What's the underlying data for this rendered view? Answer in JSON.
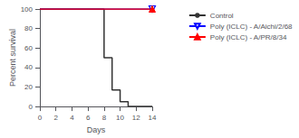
{
  "chart_data": {
    "type": "line",
    "xlabel": "Days",
    "ylabel": "Percent survival",
    "series": [
      {
        "name": "Control",
        "color": "#333333",
        "x": [
          0,
          8,
          8,
          9,
          9,
          10,
          10,
          11,
          11,
          14
        ],
        "values": [
          100,
          100,
          50,
          50,
          17,
          17,
          5,
          5,
          0,
          0
        ]
      },
      {
        "name": "Poly (ICLC) - A/Aichi/2/68",
        "color": "#0000ff",
        "marker": "triangle_down_open",
        "x": [
          0,
          14
        ],
        "values": [
          100,
          100
        ]
      },
      {
        "name": "Poly (ICLC) - A/PR/8/34",
        "color": "#ff0000",
        "marker": "triangle_up",
        "x": [
          0,
          14
        ],
        "values": [
          100,
          100
        ]
      }
    ],
    "xlim": [
      0,
      14
    ],
    "ylim": [
      0,
      100
    ],
    "xticks": [
      0,
      2,
      4,
      6,
      8,
      10,
      12,
      14
    ],
    "yticks": [
      0,
      20,
      40,
      60,
      80,
      100
    ],
    "grid": false,
    "legend": "right"
  }
}
